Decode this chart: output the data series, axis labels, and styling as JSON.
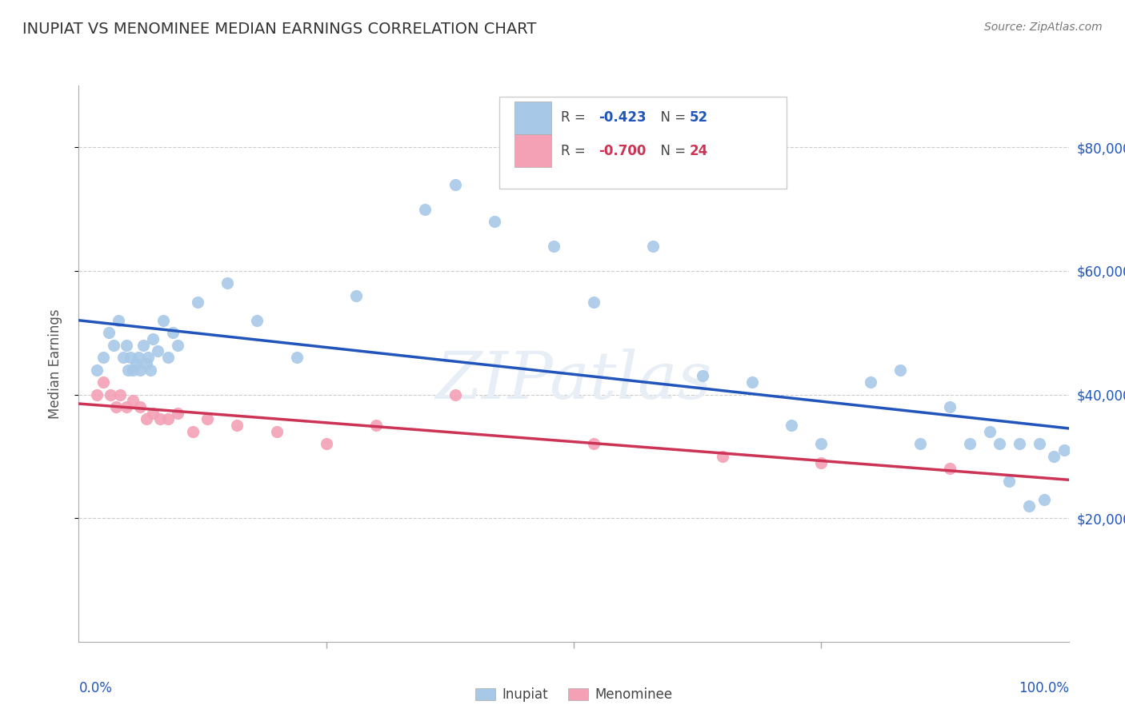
{
  "title": "INUPIAT VS MENOMINEE MEDIAN EARNINGS CORRELATION CHART",
  "source": "Source: ZipAtlas.com",
  "ylabel": "Median Earnings",
  "yticks": [
    20000,
    40000,
    60000,
    80000
  ],
  "ytick_labels": [
    "$20,000",
    "$40,000",
    "$60,000",
    "$80,000"
  ],
  "ylim": [
    0,
    90000
  ],
  "xlim": [
    0,
    1.0
  ],
  "inupiat_R": "-0.423",
  "inupiat_N": "52",
  "menominee_R": "-0.700",
  "menominee_N": "24",
  "inupiat_color": "#a8c8e8",
  "inupiat_line_color": "#2255bb",
  "menominee_color": "#f4a0b5",
  "menominee_line_color": "#cc3355",
  "background_color": "#ffffff",
  "tick_color": "#2255bb",
  "watermark_color": "#e8eef5",
  "inupiat_x": [
    0.018,
    0.025,
    0.03,
    0.035,
    0.04,
    0.045,
    0.048,
    0.05,
    0.052,
    0.055,
    0.058,
    0.06,
    0.062,
    0.065,
    0.068,
    0.07,
    0.072,
    0.075,
    0.08,
    0.085,
    0.09,
    0.095,
    0.1,
    0.12,
    0.15,
    0.18,
    0.22,
    0.28,
    0.35,
    0.38,
    0.42,
    0.48,
    0.52,
    0.58,
    0.63,
    0.68,
    0.72,
    0.75,
    0.8,
    0.83,
    0.85,
    0.88,
    0.9,
    0.92,
    0.93,
    0.94,
    0.95,
    0.96,
    0.97,
    0.975,
    0.985,
    0.995
  ],
  "inupiat_y": [
    44000,
    46000,
    50000,
    48000,
    52000,
    46000,
    48000,
    44000,
    46000,
    44000,
    45000,
    46000,
    44000,
    48000,
    45000,
    46000,
    44000,
    49000,
    47000,
    52000,
    46000,
    50000,
    48000,
    55000,
    58000,
    52000,
    46000,
    56000,
    70000,
    74000,
    68000,
    64000,
    55000,
    64000,
    43000,
    42000,
    35000,
    32000,
    42000,
    44000,
    32000,
    38000,
    32000,
    34000,
    32000,
    26000,
    32000,
    22000,
    32000,
    23000,
    30000,
    31000
  ],
  "menominee_x": [
    0.018,
    0.025,
    0.032,
    0.038,
    0.042,
    0.048,
    0.055,
    0.062,
    0.068,
    0.075,
    0.082,
    0.09,
    0.1,
    0.115,
    0.13,
    0.16,
    0.2,
    0.25,
    0.3,
    0.38,
    0.52,
    0.65,
    0.75,
    0.88
  ],
  "menominee_y": [
    40000,
    42000,
    40000,
    38000,
    40000,
    38000,
    39000,
    38000,
    36000,
    37000,
    36000,
    36000,
    37000,
    34000,
    36000,
    35000,
    34000,
    32000,
    35000,
    40000,
    32000,
    30000,
    29000,
    28000
  ]
}
